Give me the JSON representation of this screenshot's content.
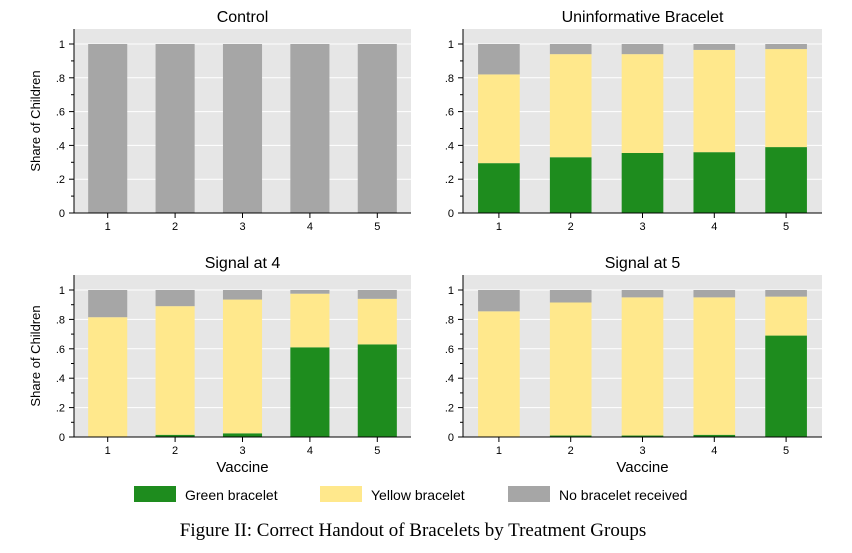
{
  "colors": {
    "green": "#1e8c1e",
    "yellow": "#ffe88c",
    "gray": "#a6a6a6",
    "plot_bg": "#e6e6e6",
    "grid": "#ffffff"
  },
  "legend": [
    {
      "label": "Green bracelet",
      "color_key": "green"
    },
    {
      "label": "Yellow bracelet",
      "color_key": "yellow"
    },
    {
      "label": "No bracelet received",
      "color_key": "gray"
    }
  ],
  "caption": "Figure II: Correct Handout of Bracelets by Treatment Groups",
  "chart_data": [
    {
      "type": "bar",
      "stacked": true,
      "title": "Control",
      "ylabel": "Share of Children",
      "xlabel": "",
      "categories": [
        "1",
        "2",
        "3",
        "4",
        "5"
      ],
      "yticks": [
        "0",
        ".2",
        ".4",
        ".6",
        ".8",
        "1"
      ],
      "ylim": [
        0,
        1
      ],
      "series": [
        {
          "name": "Green bracelet",
          "values": [
            0,
            0,
            0,
            0,
            0
          ]
        },
        {
          "name": "Yellow bracelet",
          "values": [
            0,
            0,
            0,
            0,
            0
          ]
        },
        {
          "name": "No bracelet received",
          "values": [
            1,
            1,
            1,
            1,
            1
          ]
        }
      ]
    },
    {
      "type": "bar",
      "stacked": true,
      "title": "Uninformative Bracelet",
      "ylabel": "",
      "xlabel": "",
      "categories": [
        "1",
        "2",
        "3",
        "4",
        "5"
      ],
      "yticks": [
        "0",
        ".2",
        ".4",
        ".6",
        ".8",
        "1"
      ],
      "ylim": [
        0,
        1
      ],
      "series": [
        {
          "name": "Green bracelet",
          "values": [
            0.295,
            0.33,
            0.355,
            0.36,
            0.39
          ]
        },
        {
          "name": "Yellow bracelet",
          "values": [
            0.525,
            0.61,
            0.585,
            0.605,
            0.58
          ]
        },
        {
          "name": "No bracelet received",
          "values": [
            0.18,
            0.06,
            0.06,
            0.035,
            0.03
          ]
        }
      ]
    },
    {
      "type": "bar",
      "stacked": true,
      "title": "Signal at 4",
      "ylabel": "Share of Children",
      "xlabel": "Vaccine",
      "categories": [
        "1",
        "2",
        "3",
        "4",
        "5"
      ],
      "yticks": [
        "0",
        ".2",
        ".4",
        ".6",
        ".8",
        "1"
      ],
      "ylim": [
        0,
        1
      ],
      "series": [
        {
          "name": "Green bracelet",
          "values": [
            0,
            0.015,
            0.025,
            0.61,
            0.63
          ]
        },
        {
          "name": "Yellow bracelet",
          "values": [
            0.815,
            0.875,
            0.91,
            0.365,
            0.31
          ]
        },
        {
          "name": "No bracelet received",
          "values": [
            0.185,
            0.11,
            0.065,
            0.025,
            0.06
          ]
        }
      ]
    },
    {
      "type": "bar",
      "stacked": true,
      "title": "Signal at 5",
      "ylabel": "",
      "xlabel": "Vaccine",
      "categories": [
        "1",
        "2",
        "3",
        "4",
        "5"
      ],
      "yticks": [
        "0",
        ".2",
        ".4",
        ".6",
        ".8",
        "1"
      ],
      "ylim": [
        0,
        1
      ],
      "series": [
        {
          "name": "Green bracelet",
          "values": [
            0,
            0.01,
            0.01,
            0.015,
            0.69
          ]
        },
        {
          "name": "Yellow bracelet",
          "values": [
            0.855,
            0.905,
            0.94,
            0.935,
            0.265
          ]
        },
        {
          "name": "No bracelet received",
          "values": [
            0.145,
            0.085,
            0.05,
            0.05,
            0.045
          ]
        }
      ]
    }
  ]
}
